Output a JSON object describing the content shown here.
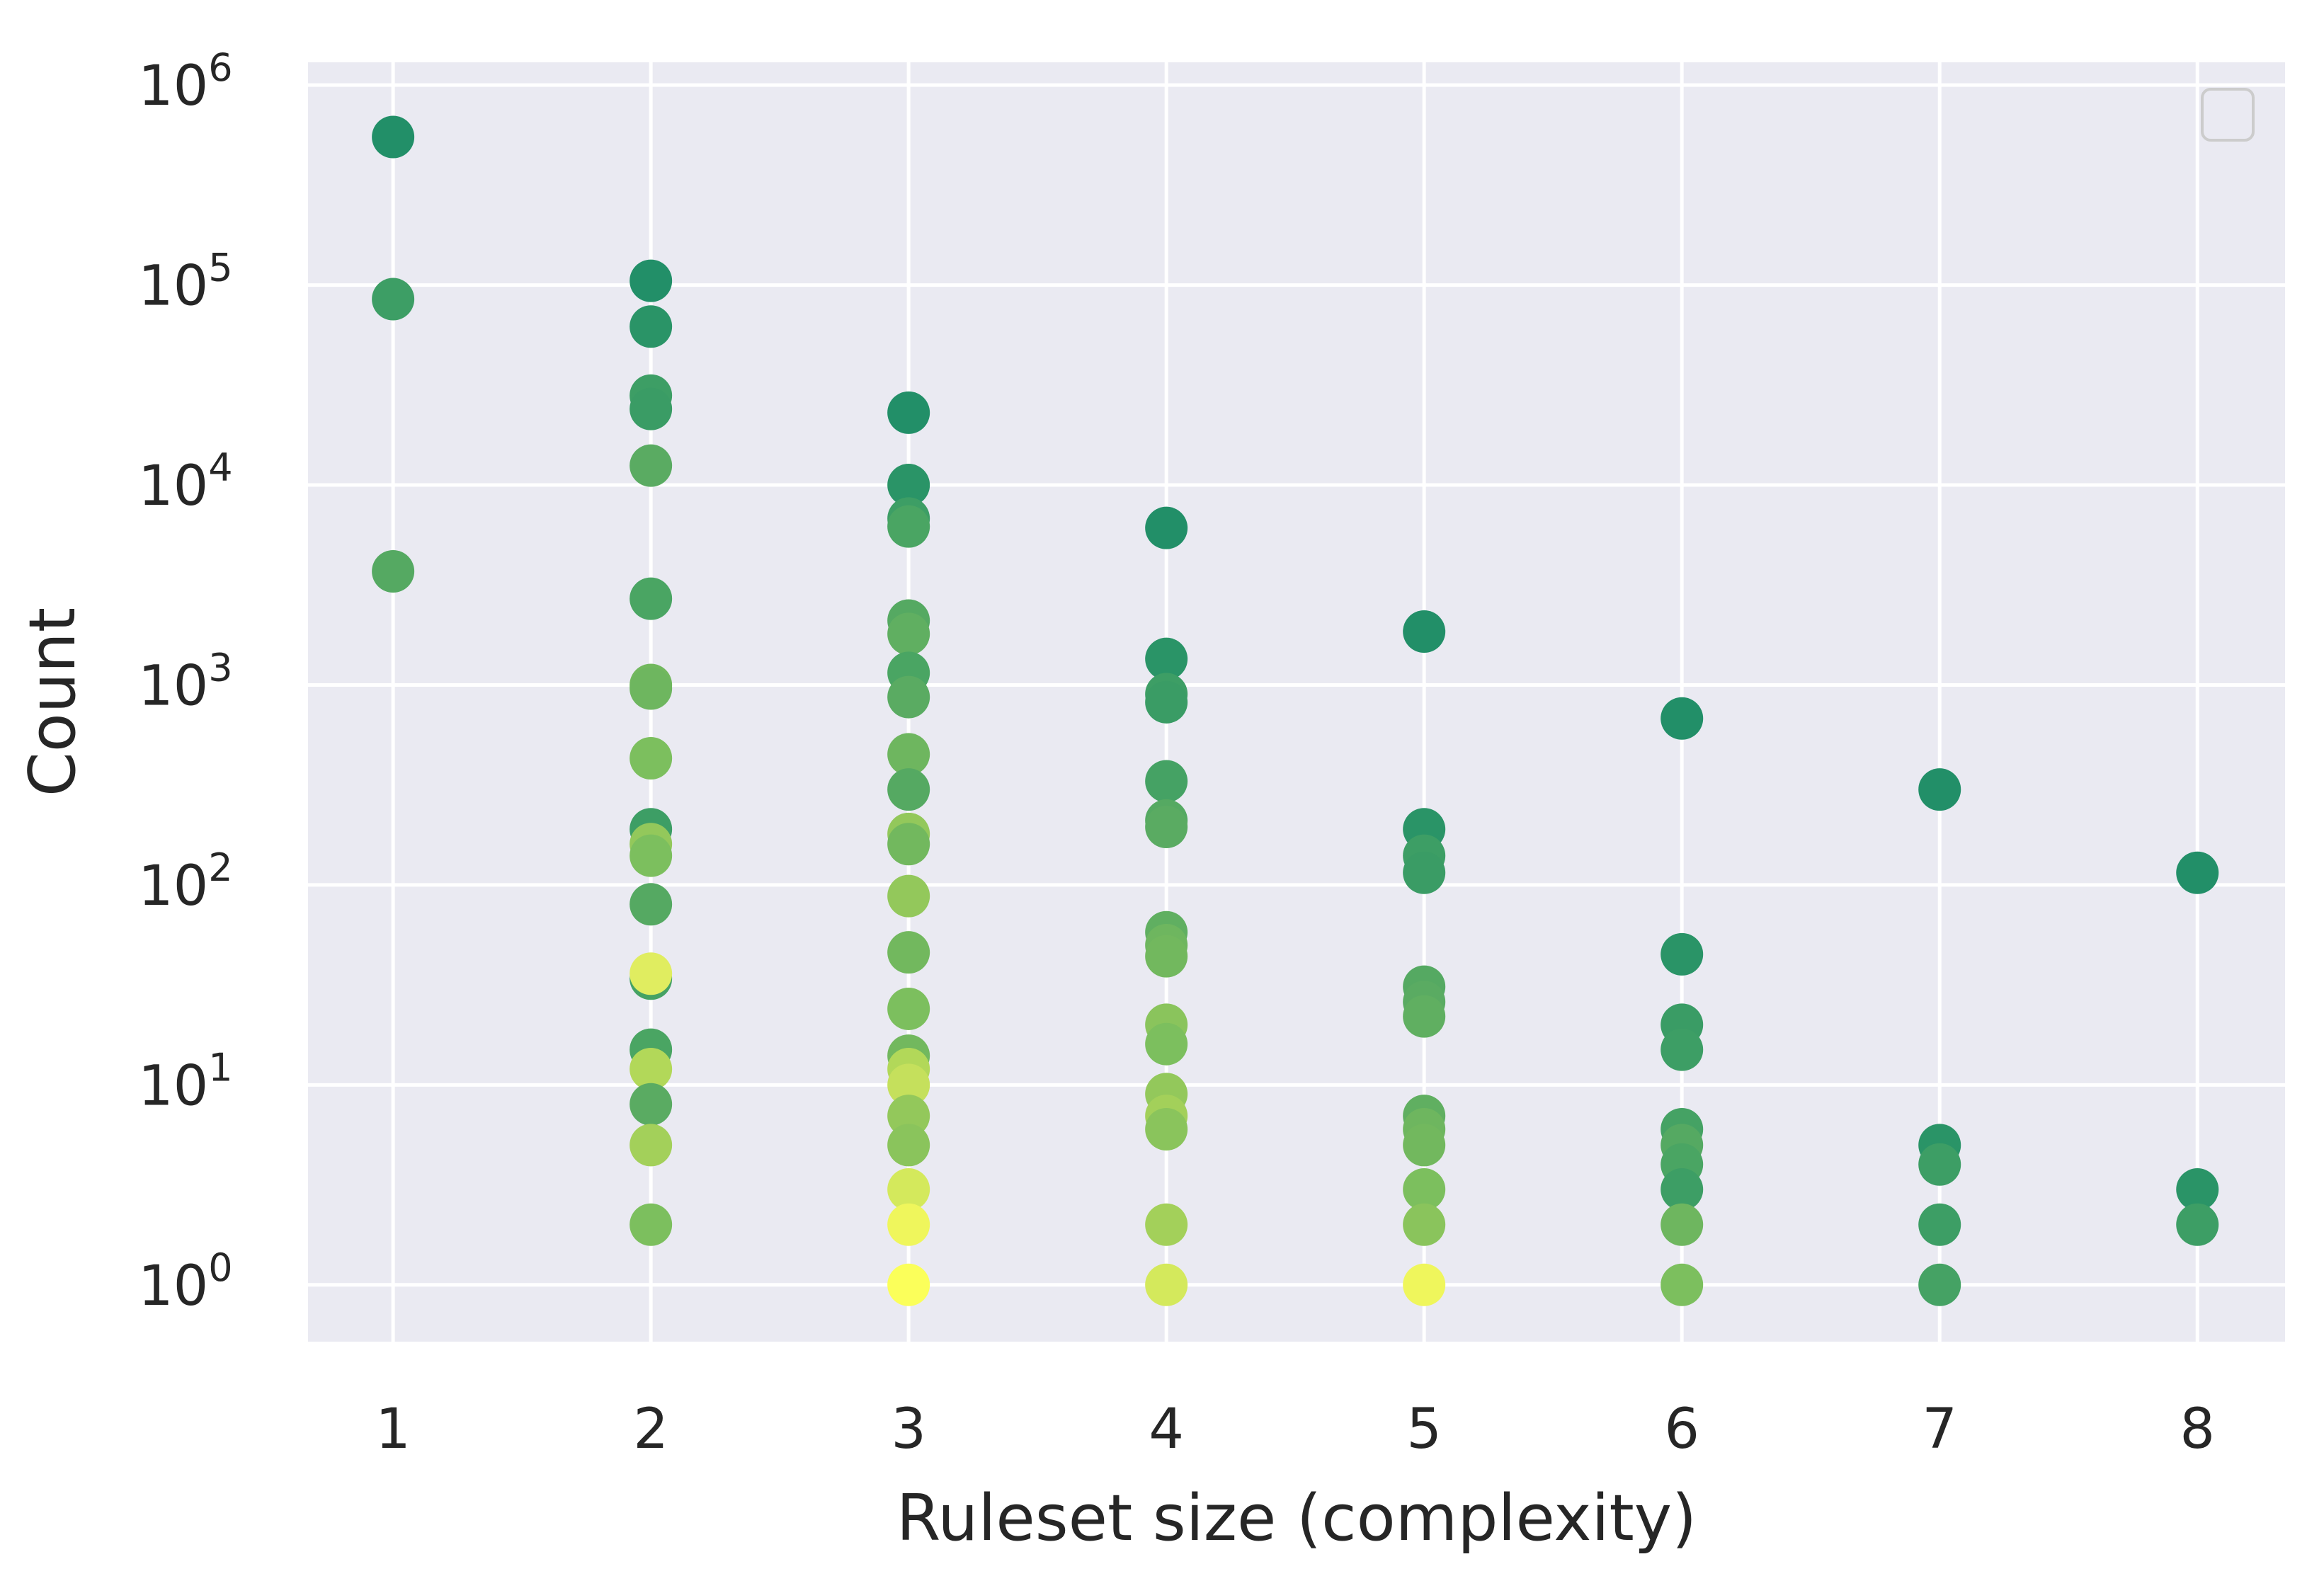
{
  "chart_data": {
    "type": "scatter",
    "xlabel": "Ruleset size (complexity)",
    "ylabel": "Count",
    "xlim": [
      0.67,
      8.34
    ],
    "ylim": [
      0.52,
      1300000
    ],
    "yscale": "log",
    "grid": true,
    "legend": "top-right (empty)",
    "colormap": "summer_r",
    "x_ticks": [
      1,
      2,
      3,
      4,
      5,
      6,
      7,
      8
    ],
    "y_tick_base": "10",
    "y_ticks": [
      {
        "value": 1,
        "exponent": "0"
      },
      {
        "value": 10,
        "exponent": "1"
      },
      {
        "value": 100,
        "exponent": "2"
      },
      {
        "value": 1000,
        "exponent": "3"
      },
      {
        "value": 10000,
        "exponent": "4"
      },
      {
        "value": 100000,
        "exponent": "5"
      },
      {
        "value": 1000000,
        "exponent": "6"
      }
    ],
    "points": [
      {
        "x": 1,
        "y": 550000,
        "color": "#228f68"
      },
      {
        "x": 1,
        "y": 85000,
        "color": "#3d9e65"
      },
      {
        "x": 1,
        "y": 3700,
        "color": "#55a962"
      },
      {
        "x": 2,
        "y": 105000,
        "color": "#228f68"
      },
      {
        "x": 2,
        "y": 62000,
        "color": "#2a9467"
      },
      {
        "x": 2,
        "y": 28000,
        "color": "#3d9e65"
      },
      {
        "x": 2,
        "y": 24000,
        "color": "#3a9c65"
      },
      {
        "x": 2,
        "y": 12500,
        "color": "#5aab62"
      },
      {
        "x": 2,
        "y": 2700,
        "color": "#4aa563"
      },
      {
        "x": 2,
        "y": 1000,
        "color": "#72b85e"
      },
      {
        "x": 2,
        "y": 960,
        "color": "#6eb65f"
      },
      {
        "x": 2,
        "y": 430,
        "color": "#7cbf5e"
      },
      {
        "x": 2,
        "y": 190,
        "color": "#3d9e65"
      },
      {
        "x": 2,
        "y": 160,
        "color": "#93c85b"
      },
      {
        "x": 2,
        "y": 140,
        "color": "#7cbf5e"
      },
      {
        "x": 2,
        "y": 80,
        "color": "#55a962"
      },
      {
        "x": 2,
        "y": 34,
        "color": "#45a264"
      },
      {
        "x": 2,
        "y": 36,
        "color": "#e0ed60"
      },
      {
        "x": 2,
        "y": 15,
        "color": "#4aa563"
      },
      {
        "x": 2,
        "y": 12,
        "color": "#b2d859"
      },
      {
        "x": 2,
        "y": 8,
        "color": "#5aab62"
      },
      {
        "x": 2,
        "y": 5,
        "color": "#a3d05a"
      },
      {
        "x": 2,
        "y": 2,
        "color": "#7cbf5e"
      },
      {
        "x": 3,
        "y": 23000,
        "color": "#228f68"
      },
      {
        "x": 3,
        "y": 10000,
        "color": "#2a9467"
      },
      {
        "x": 3,
        "y": 6800,
        "color": "#3d9e65"
      },
      {
        "x": 3,
        "y": 6200,
        "color": "#4aa563"
      },
      {
        "x": 3,
        "y": 2100,
        "color": "#55a962"
      },
      {
        "x": 3,
        "y": 1800,
        "color": "#60af61"
      },
      {
        "x": 3,
        "y": 1150,
        "color": "#4aa563"
      },
      {
        "x": 3,
        "y": 870,
        "color": "#5aab62"
      },
      {
        "x": 3,
        "y": 450,
        "color": "#6eb65f"
      },
      {
        "x": 3,
        "y": 300,
        "color": "#55a962"
      },
      {
        "x": 3,
        "y": 180,
        "color": "#93c85b"
      },
      {
        "x": 3,
        "y": 160,
        "color": "#72b85e"
      },
      {
        "x": 3,
        "y": 88,
        "color": "#93c85b"
      },
      {
        "x": 3,
        "y": 46,
        "color": "#72b85e"
      },
      {
        "x": 3,
        "y": 24,
        "color": "#7cbf5e"
      },
      {
        "x": 3,
        "y": 14,
        "color": "#72b85e"
      },
      {
        "x": 3,
        "y": 12,
        "color": "#b2d859"
      },
      {
        "x": 3,
        "y": 10,
        "color": "#c5e05c"
      },
      {
        "x": 3,
        "y": 7,
        "color": "#93c85b"
      },
      {
        "x": 3,
        "y": 5,
        "color": "#8ac45c"
      },
      {
        "x": 3,
        "y": 3,
        "color": "#d4e95c"
      },
      {
        "x": 3,
        "y": 2,
        "color": "#eff65c"
      },
      {
        "x": 3,
        "y": 1,
        "color": "#fbff5a"
      },
      {
        "x": 4,
        "y": 6100,
        "color": "#228f68"
      },
      {
        "x": 4,
        "y": 1350,
        "color": "#2a9467"
      },
      {
        "x": 4,
        "y": 900,
        "color": "#3d9e65"
      },
      {
        "x": 4,
        "y": 820,
        "color": "#3a9c65"
      },
      {
        "x": 4,
        "y": 330,
        "color": "#45a264"
      },
      {
        "x": 4,
        "y": 210,
        "color": "#55a962"
      },
      {
        "x": 4,
        "y": 195,
        "color": "#5aab62"
      },
      {
        "x": 4,
        "y": 58,
        "color": "#60af61"
      },
      {
        "x": 4,
        "y": 50,
        "color": "#6eb65f"
      },
      {
        "x": 4,
        "y": 44,
        "color": "#72b85e"
      },
      {
        "x": 4,
        "y": 20,
        "color": "#8ac45c"
      },
      {
        "x": 4,
        "y": 16,
        "color": "#7cbf5e"
      },
      {
        "x": 4,
        "y": 9,
        "color": "#93c85b"
      },
      {
        "x": 4,
        "y": 7,
        "color": "#a3d05a"
      },
      {
        "x": 4,
        "y": 6,
        "color": "#8ac45c"
      },
      {
        "x": 4,
        "y": 2,
        "color": "#a3d05a"
      },
      {
        "x": 4,
        "y": 1,
        "color": "#d4e95c"
      },
      {
        "x": 5,
        "y": 1850,
        "color": "#228f68"
      },
      {
        "x": 5,
        "y": 190,
        "color": "#2a9467"
      },
      {
        "x": 5,
        "y": 140,
        "color": "#3d9e65"
      },
      {
        "x": 5,
        "y": 115,
        "color": "#3a9c65"
      },
      {
        "x": 5,
        "y": 31,
        "color": "#55a962"
      },
      {
        "x": 5,
        "y": 26,
        "color": "#5aab62"
      },
      {
        "x": 5,
        "y": 22,
        "color": "#60af61"
      },
      {
        "x": 5,
        "y": 7,
        "color": "#60af61"
      },
      {
        "x": 5,
        "y": 6,
        "color": "#6eb65f"
      },
      {
        "x": 5,
        "y": 5,
        "color": "#72b85e"
      },
      {
        "x": 5,
        "y": 3,
        "color": "#7cbf5e"
      },
      {
        "x": 5,
        "y": 2,
        "color": "#8ac45c"
      },
      {
        "x": 5,
        "y": 1,
        "color": "#eff65c"
      },
      {
        "x": 6,
        "y": 680,
        "color": "#228f68"
      },
      {
        "x": 6,
        "y": 45,
        "color": "#2a9467"
      },
      {
        "x": 6,
        "y": 20,
        "color": "#3a9c65"
      },
      {
        "x": 6,
        "y": 15,
        "color": "#3d9e65"
      },
      {
        "x": 6,
        "y": 6,
        "color": "#45a264"
      },
      {
        "x": 6,
        "y": 5,
        "color": "#55a962"
      },
      {
        "x": 6,
        "y": 4,
        "color": "#4aa563"
      },
      {
        "x": 6,
        "y": 3,
        "color": "#3d9e65"
      },
      {
        "x": 6,
        "y": 2,
        "color": "#6eb65f"
      },
      {
        "x": 6,
        "y": 1,
        "color": "#7cbf5e"
      },
      {
        "x": 7,
        "y": 300,
        "color": "#228f68"
      },
      {
        "x": 7,
        "y": 5,
        "color": "#2a9467"
      },
      {
        "x": 7,
        "y": 4,
        "color": "#3d9e65"
      },
      {
        "x": 7,
        "y": 2,
        "color": "#3d9e65"
      },
      {
        "x": 7,
        "y": 1,
        "color": "#45a264"
      },
      {
        "x": 8,
        "y": 115,
        "color": "#228f68"
      },
      {
        "x": 8,
        "y": 3,
        "color": "#2a9467"
      },
      {
        "x": 8,
        "y": 2,
        "color": "#3d9e65"
      }
    ]
  }
}
